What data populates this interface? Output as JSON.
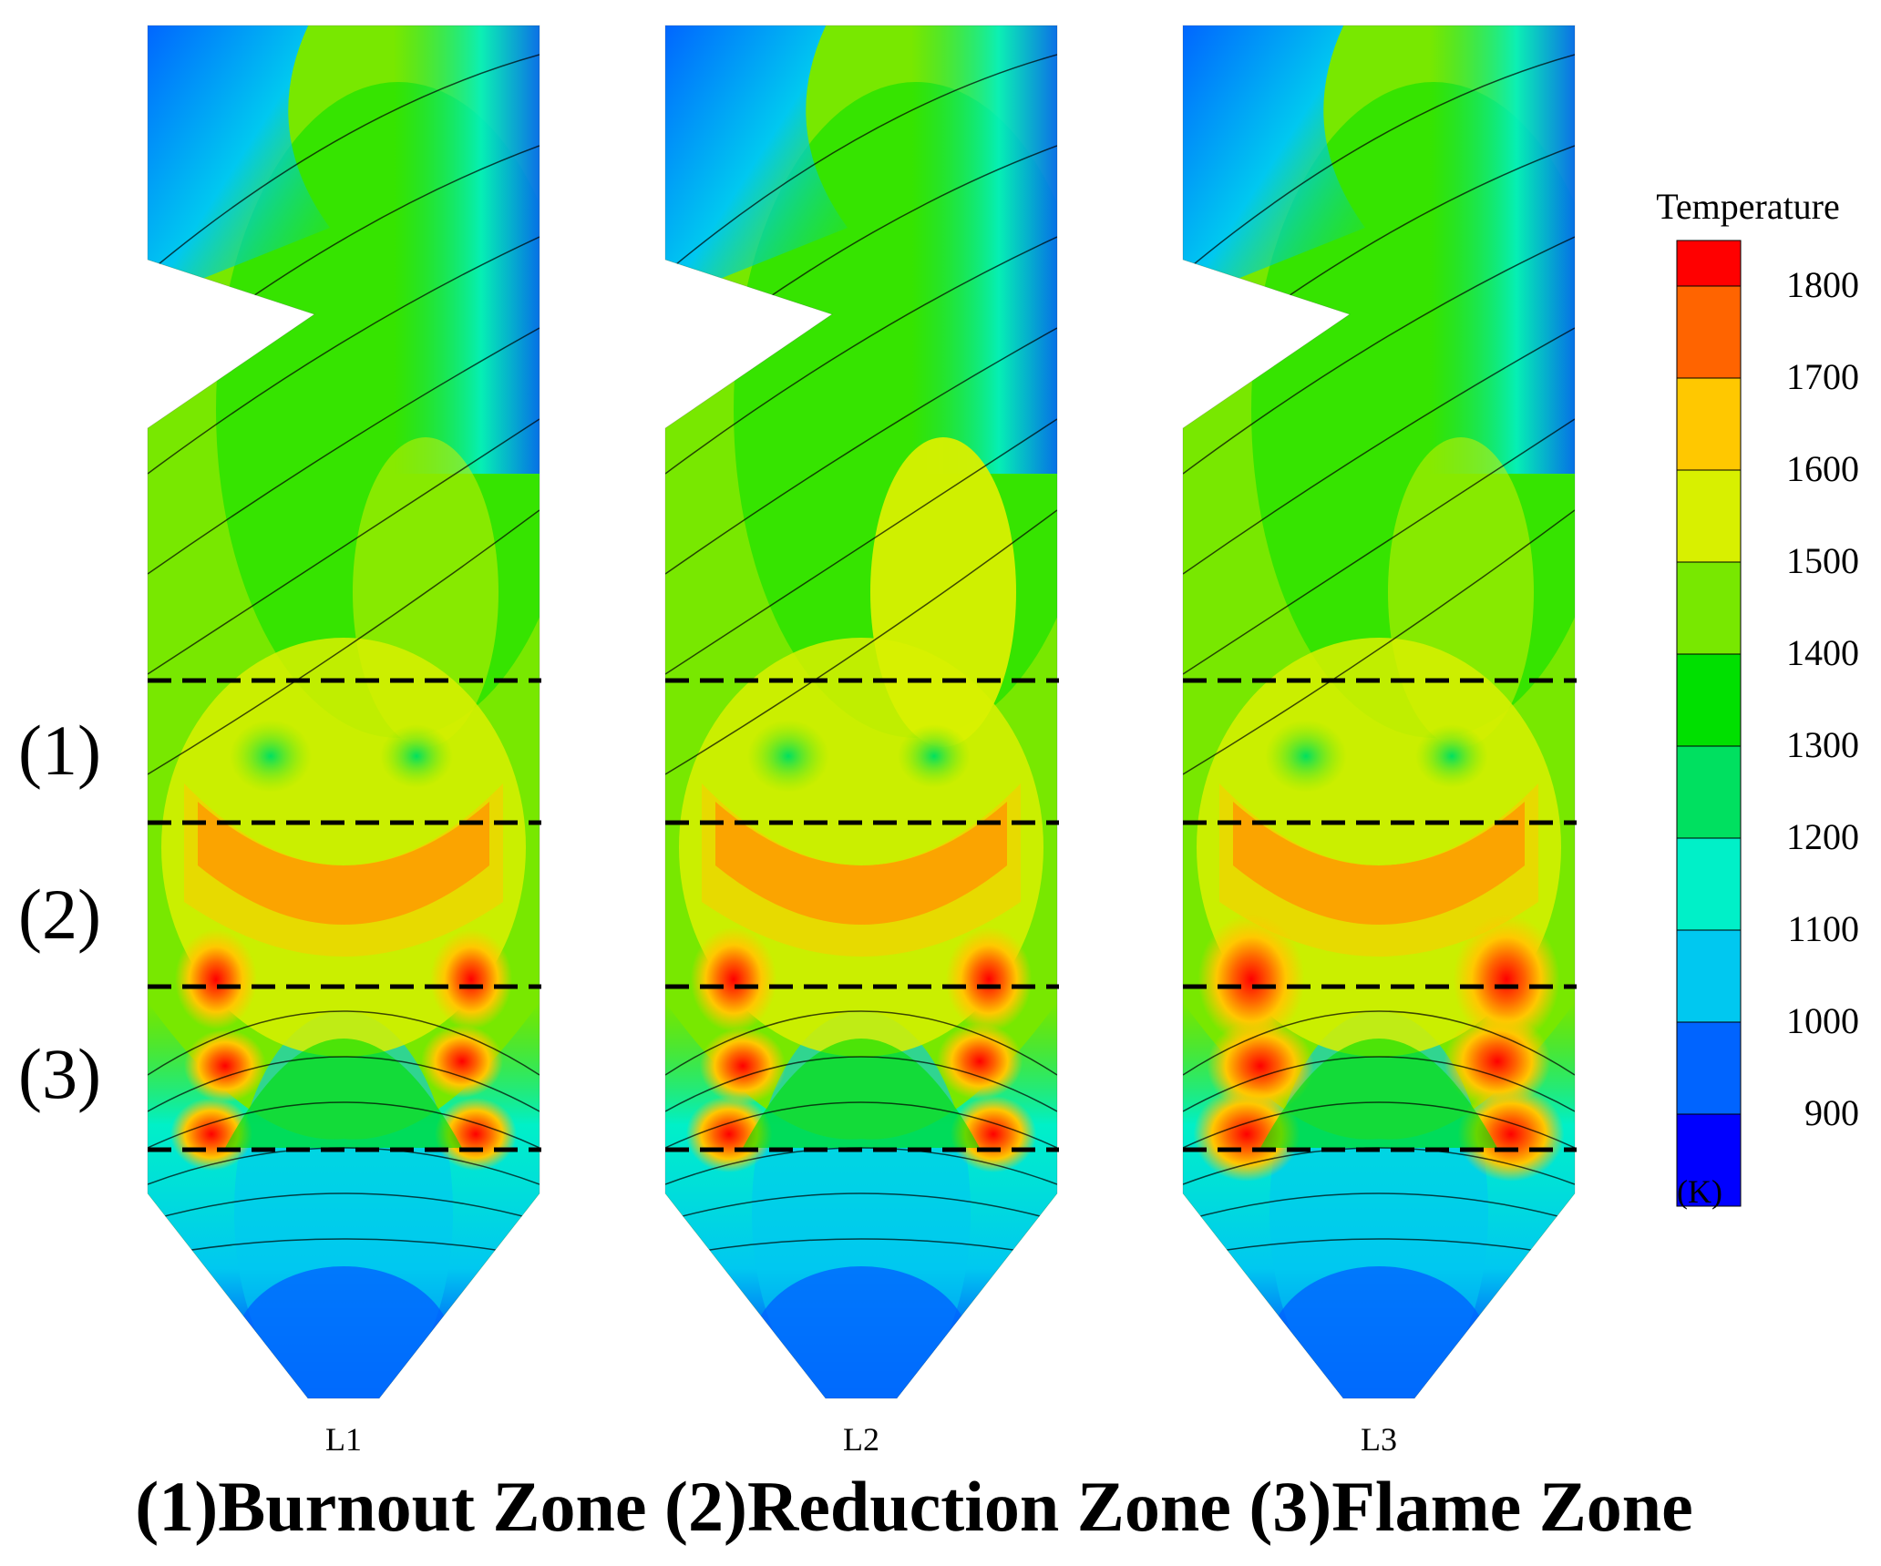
{
  "panels": [
    {
      "label": "L1"
    },
    {
      "label": "L2"
    },
    {
      "label": "L3"
    }
  ],
  "zone_markers": [
    "(1)",
    "(2)",
    "(3)"
  ],
  "caption": "(1)Burnout Zone (2)Reduction Zone (3)Flame Zone",
  "legend": {
    "title": "Temperature",
    "unit": "(K)",
    "ticks": [
      "1800",
      "1700",
      "1600",
      "1500",
      "1400",
      "1300",
      "1200",
      "1100",
      "1000",
      "900"
    ],
    "colors": [
      "#ff0000",
      "#ff6400",
      "#ffc800",
      "#d8f000",
      "#78e800",
      "#00e000",
      "#00e060",
      "#00f0c8",
      "#00c8f0",
      "#0064ff",
      "#0000ff"
    ]
  }
}
